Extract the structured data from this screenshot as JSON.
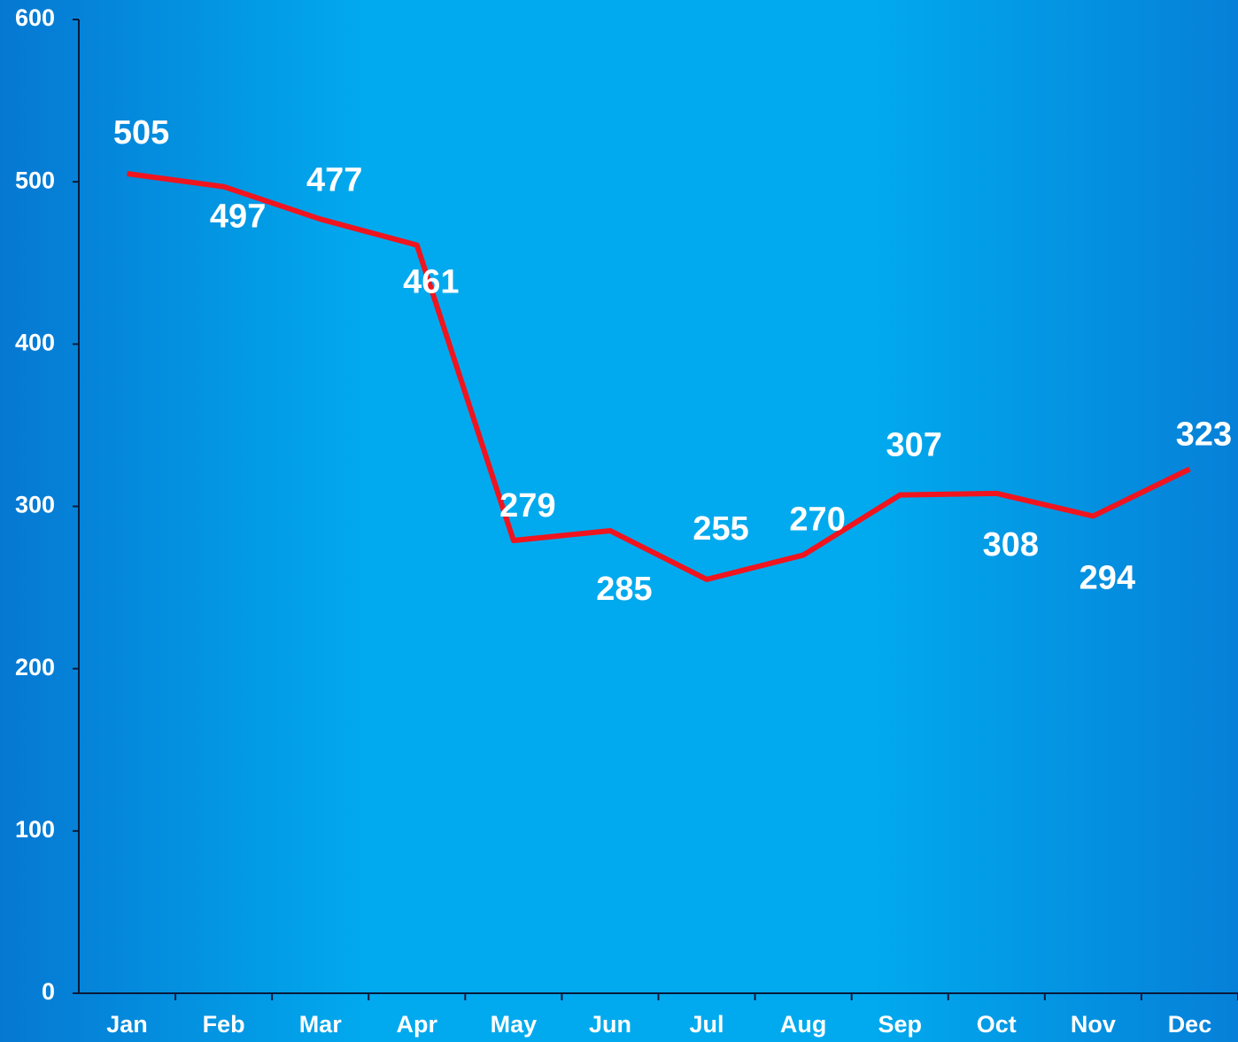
{
  "chart_data": {
    "type": "line",
    "categories": [
      "Jan",
      "Feb",
      "Mar",
      "Apr",
      "May",
      "Jun",
      "Jul",
      "Aug",
      "Sep",
      "Oct",
      "Nov",
      "Dec"
    ],
    "series": [
      {
        "color": "#f0141e",
        "values": [
          505,
          497,
          477,
          461,
          279,
          285,
          255,
          270,
          307,
          308,
          294,
          323
        ]
      }
    ],
    "ylim": [
      0,
      600
    ],
    "yticks": [
      0,
      100,
      200,
      300,
      400,
      500,
      600
    ]
  }
}
